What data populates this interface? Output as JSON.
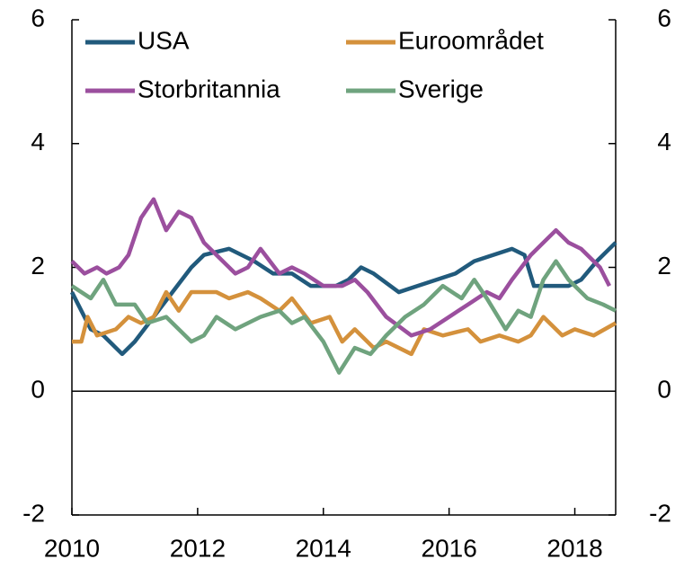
{
  "chart_data": {
    "type": "line",
    "xlim": [
      2010,
      2018.65
    ],
    "xticks": [
      2010,
      2012,
      2014,
      2016,
      2018
    ],
    "ylim": [
      -2,
      6
    ],
    "yticks": [
      -2,
      0,
      2,
      4,
      6
    ],
    "y2lim": [
      -2,
      6
    ],
    "y2ticks": [
      -2,
      0,
      2,
      4,
      6
    ],
    "series": [
      {
        "name": "USA",
        "color": "#215a7c",
        "x": [
          2010,
          2010.3,
          2010.5,
          2010.8,
          2011,
          2011.3,
          2011.6,
          2011.9,
          2012.1,
          2012.5,
          2012.9,
          2013.2,
          2013.5,
          2013.8,
          2014.2,
          2014.4,
          2014.6,
          2014.8,
          2015.2,
          2015.5,
          2015.8,
          2016.1,
          2016.4,
          2016.7,
          2017,
          2017.2,
          2017.35,
          2017.9,
          2018.1,
          2018.35,
          2018.65
        ],
        "values": [
          1.6,
          1.0,
          0.9,
          0.6,
          0.8,
          1.2,
          1.6,
          2.0,
          2.2,
          2.3,
          2.1,
          1.9,
          1.9,
          1.7,
          1.7,
          1.8,
          2.0,
          1.9,
          1.6,
          1.7,
          1.8,
          1.9,
          2.1,
          2.2,
          2.3,
          2.2,
          1.7,
          1.7,
          1.8,
          2.1,
          2.4
        ]
      },
      {
        "name": "Euroområdet",
        "color": "#d4913c",
        "x": [
          2010,
          2010.15,
          2010.25,
          2010.4,
          2010.7,
          2010.9,
          2011.1,
          2011.3,
          2011.5,
          2011.7,
          2011.9,
          2012.3,
          2012.5,
          2012.8,
          2013,
          2013.3,
          2013.5,
          2013.8,
          2014.1,
          2014.3,
          2014.5,
          2014.8,
          2015,
          2015.4,
          2015.6,
          2015.9,
          2016.3,
          2016.5,
          2016.8,
          2017.1,
          2017.3,
          2017.5,
          2017.8,
          2018,
          2018.3,
          2018.65
        ],
        "values": [
          0.8,
          0.8,
          1.2,
          0.9,
          1.0,
          1.2,
          1.1,
          1.2,
          1.6,
          1.3,
          1.6,
          1.6,
          1.5,
          1.6,
          1.5,
          1.3,
          1.5,
          1.1,
          1.2,
          0.8,
          1.0,
          0.7,
          0.8,
          0.6,
          1.0,
          0.9,
          1.0,
          0.8,
          0.9,
          0.8,
          0.9,
          1.2,
          0.9,
          1.0,
          0.9,
          1.1
        ]
      },
      {
        "name": "Storbritannia",
        "color": "#9b4f9e",
        "x": [
          2010,
          2010.2,
          2010.4,
          2010.55,
          2010.75,
          2010.9,
          2011.1,
          2011.3,
          2011.5,
          2011.7,
          2011.9,
          2012.1,
          2012.3,
          2012.6,
          2012.8,
          2013,
          2013.3,
          2013.5,
          2013.7,
          2014,
          2014.3,
          2014.5,
          2014.7,
          2015,
          2015.4,
          2015.7,
          2016,
          2016.3,
          2016.6,
          2016.8,
          2017,
          2017.3,
          2017.5,
          2017.7,
          2017.9,
          2018.1,
          2018.4,
          2018.55
        ],
        "values": [
          2.1,
          1.9,
          2.0,
          1.9,
          2.0,
          2.2,
          2.8,
          3.1,
          2.6,
          2.9,
          2.8,
          2.4,
          2.2,
          1.9,
          2.0,
          2.3,
          1.9,
          2.0,
          1.9,
          1.7,
          1.7,
          1.8,
          1.6,
          1.2,
          0.9,
          1.0,
          1.2,
          1.4,
          1.6,
          1.5,
          1.8,
          2.2,
          2.4,
          2.6,
          2.4,
          2.3,
          2.0,
          1.7
        ]
      },
      {
        "name": "Sverige",
        "color": "#6fa37e",
        "x": [
          2010,
          2010.3,
          2010.5,
          2010.7,
          2011,
          2011.2,
          2011.5,
          2011.7,
          2011.9,
          2012.1,
          2012.3,
          2012.6,
          2012.8,
          2013,
          2013.3,
          2013.5,
          2013.7,
          2014,
          2014.25,
          2014.5,
          2014.75,
          2015,
          2015.3,
          2015.6,
          2015.9,
          2016.2,
          2016.4,
          2016.6,
          2016.9,
          2017.1,
          2017.3,
          2017.5,
          2017.7,
          2017.9,
          2018.2,
          2018.45,
          2018.65
        ],
        "values": [
          1.7,
          1.5,
          1.8,
          1.4,
          1.4,
          1.1,
          1.2,
          1.0,
          0.8,
          0.9,
          1.2,
          1.0,
          1.1,
          1.2,
          1.3,
          1.1,
          1.2,
          0.8,
          0.3,
          0.7,
          0.6,
          0.9,
          1.2,
          1.4,
          1.7,
          1.5,
          1.8,
          1.5,
          1.0,
          1.3,
          1.2,
          1.8,
          2.1,
          1.8,
          1.5,
          1.4,
          1.3
        ]
      }
    ]
  }
}
